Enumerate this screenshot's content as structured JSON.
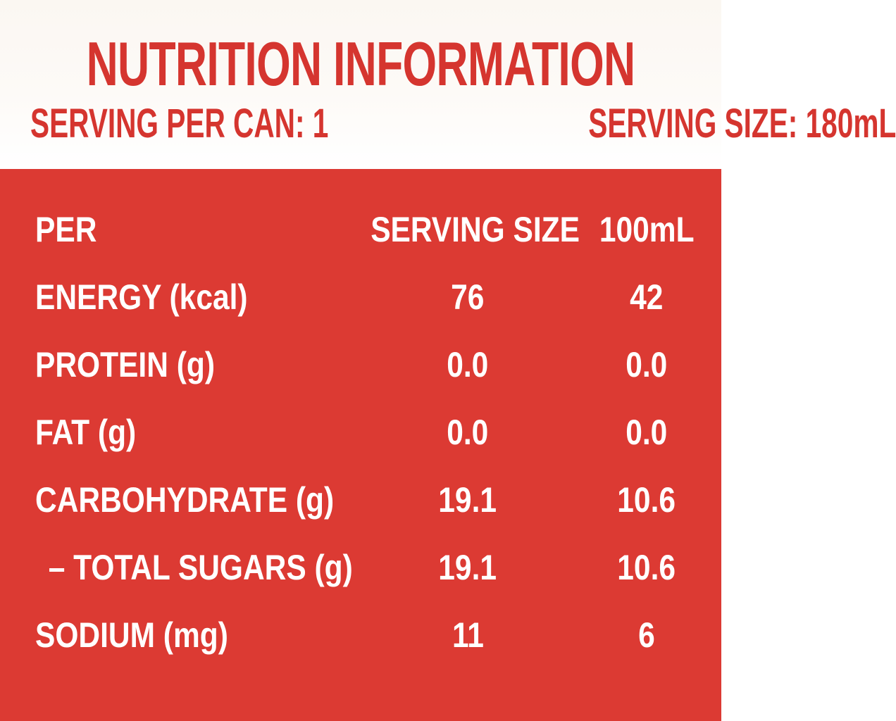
{
  "panel": {
    "title": "NUTRITION INFORMATION",
    "serving_per_can": "SERVING PER CAN: 1",
    "serving_size": "SERVING SIZE: 180mL"
  },
  "table": {
    "header": {
      "col1": "PER",
      "col2": "SERVING SIZE",
      "col3": "100mL"
    },
    "rows": [
      {
        "label": "ENERGY (kcal)",
        "serving": "76",
        "per100": "42"
      },
      {
        "label": "PROTEIN (g)",
        "serving": "0.0",
        "per100": "0.0"
      },
      {
        "label": "FAT (g)",
        "serving": "0.0",
        "per100": "0.0"
      },
      {
        "label": "CARBOHYDRATE (g)",
        "serving": "19.1",
        "per100": "10.6"
      },
      {
        "label": "– TOTAL SUGARS (g)",
        "serving": "19.1",
        "per100": "10.6"
      },
      {
        "label": "SODIUM (mg)",
        "serving": "11",
        "per100": "6"
      }
    ]
  },
  "colors": {
    "accent_red": "#d5352f",
    "block_red": "#dc3a33",
    "text_white": "#ffffff",
    "background_cream": "#fbf7f2"
  }
}
